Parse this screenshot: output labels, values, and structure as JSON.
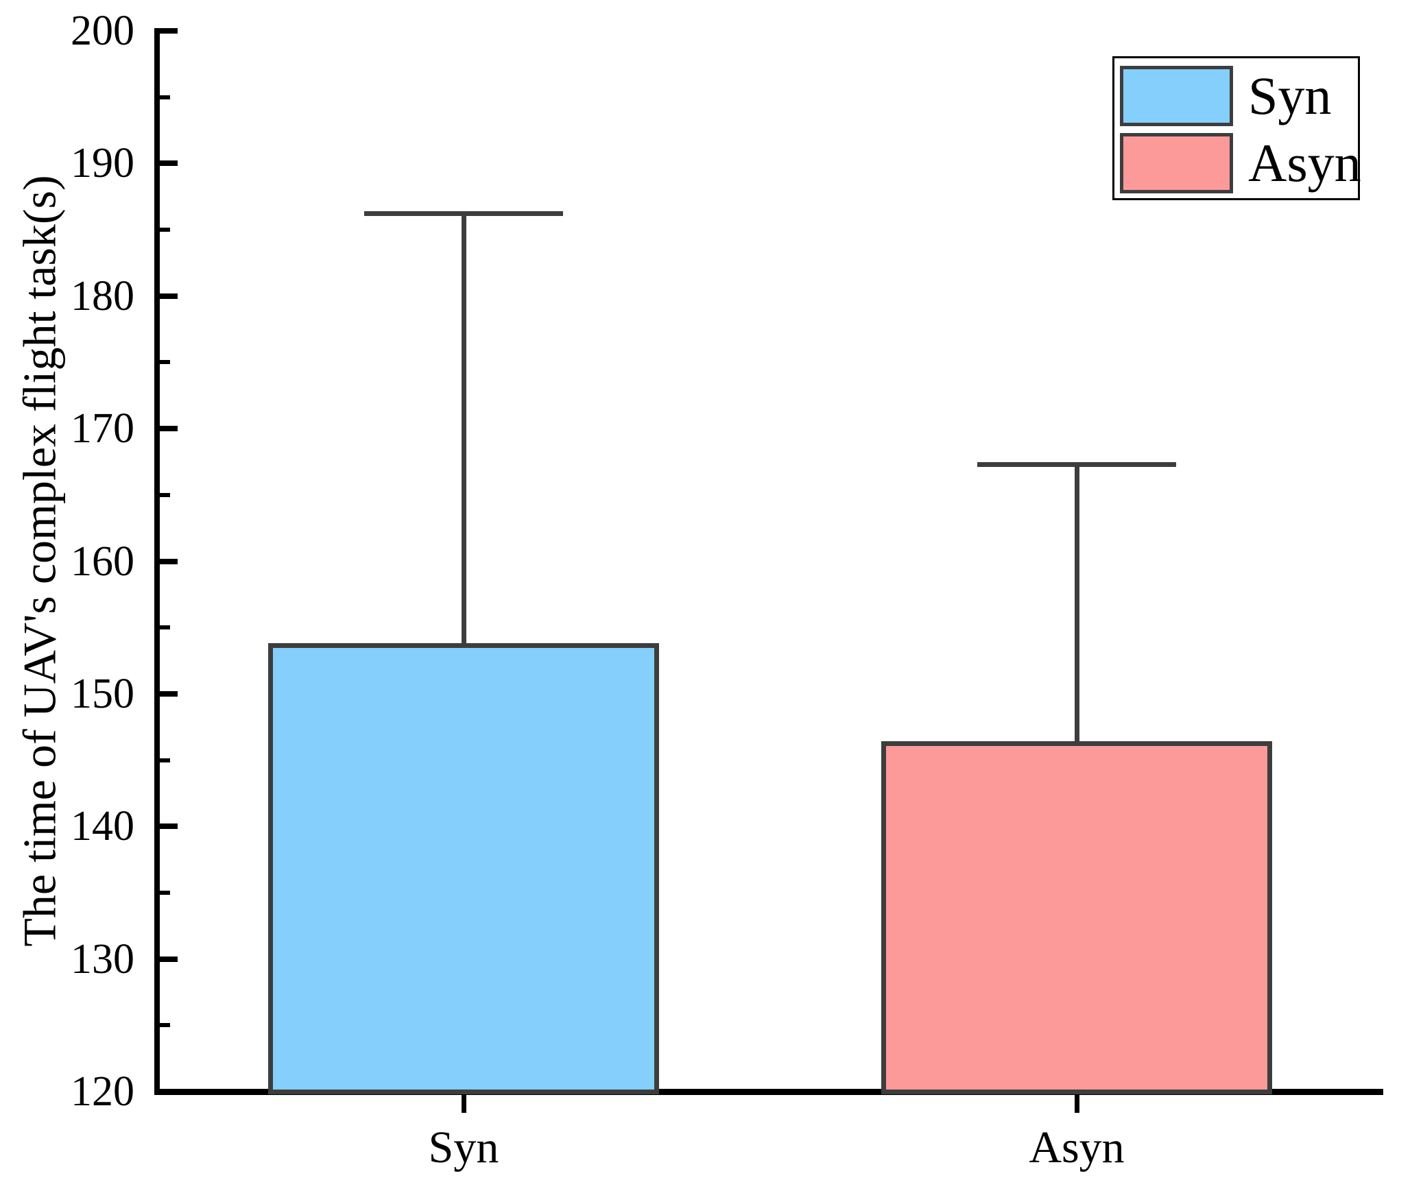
{
  "chart_data": {
    "type": "bar",
    "title": "",
    "xlabel": "",
    "ylabel": "The time of UAV's complex flight task(s)",
    "categories": [
      "Syn",
      "Asyn"
    ],
    "bars": [
      {
        "label": "Syn",
        "value": 153.8,
        "error_plus": 32.4,
        "error_top": 186.2,
        "fill_color": "#84CFFB"
      },
      {
        "label": "Asyn",
        "value": 146.4,
        "error_plus": 20.9,
        "error_top": 167.3,
        "fill_color": "#FC9A99"
      }
    ],
    "ylim": [
      120,
      200
    ],
    "y_major_ticks": [
      120,
      130,
      140,
      150,
      160,
      170,
      180,
      190,
      200
    ],
    "y_major_step": 10,
    "y_minor_step": 5,
    "grid": false,
    "legend": {
      "position": "top-right",
      "entries": [
        {
          "label": "Syn",
          "color": "#84CFFB"
        },
        {
          "label": "Asyn",
          "color": "#FC9A99"
        }
      ]
    },
    "styles": {
      "edge_color": "#3D3D3D",
      "axis_color": "#000000",
      "text_color": "#000000",
      "background": "#FFFFFF"
    }
  }
}
